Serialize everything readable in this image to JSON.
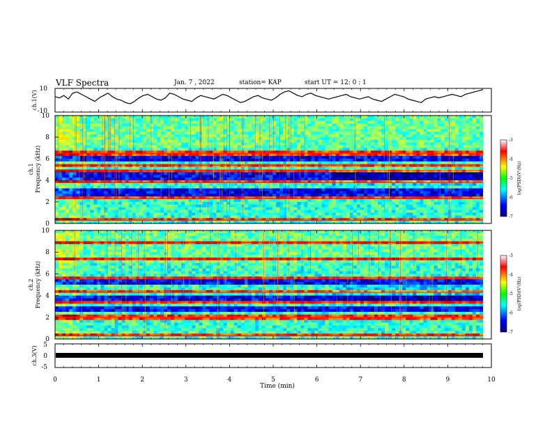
{
  "header": {
    "title": "VLF Spectra",
    "date": "Jan. 7 , 2022",
    "station": "station= KAP",
    "start_ut": "start UT = 12: 0 : 1"
  },
  "chart_data": [
    {
      "type": "line",
      "ylabel": "ch.1(V)",
      "ylim": [
        -10,
        10
      ],
      "y_ticks": [
        "10",
        "-10"
      ],
      "xlim": [
        0,
        10
      ],
      "series": [
        {
          "values": [
            3,
            2,
            4,
            1,
            6,
            7,
            5,
            3,
            1,
            -1,
            2,
            4,
            6,
            3,
            1,
            0,
            -2,
            -3,
            -1,
            2,
            4,
            5,
            3,
            1,
            0,
            2,
            6,
            5,
            3,
            1,
            0,
            -1,
            2,
            4,
            3,
            2,
            1,
            3,
            5,
            4,
            2,
            0,
            -2,
            -1,
            1,
            3,
            4,
            2,
            1,
            0,
            2,
            5,
            7,
            8,
            6,
            4,
            3,
            5,
            6,
            4,
            3,
            2,
            1,
            2,
            3,
            4,
            5,
            3,
            2,
            1,
            2,
            3,
            1,
            0,
            -1,
            1,
            3,
            5,
            4,
            3,
            1,
            0,
            -1,
            -2,
            1,
            2,
            3,
            2,
            3,
            4,
            5,
            4,
            3,
            5,
            6,
            7,
            8,
            9
          ]
        }
      ]
    },
    {
      "type": "heatmap",
      "ylabel_line1": "ch.1",
      "ylabel_line2": "Frequency (kHz)",
      "ylim": [
        0,
        10
      ],
      "y_ticks": [
        "0",
        "2",
        "4",
        "6",
        "8",
        "10"
      ],
      "xlim": [
        0,
        10
      ],
      "colorbar": {
        "label": "log(PSD)(V²/Hz)",
        "range": [
          -7,
          -3
        ],
        "ticks": [
          "-3",
          "-4",
          "-5",
          "-6",
          "-7"
        ]
      },
      "red_lines_khz": [
        0.3,
        2.3,
        3.8,
        4.9,
        5.4,
        6.5
      ],
      "blue_bands_khz": [
        [
          2.6,
          3.2
        ],
        [
          4.1,
          4.7
        ],
        [
          5.7,
          6.2
        ]
      ],
      "event_minute": 6.4
    },
    {
      "type": "heatmap",
      "ylabel_line1": "ch.2",
      "ylabel_line2": "Frequency (kHz)",
      "ylim": [
        0,
        10
      ],
      "y_ticks": [
        "0",
        "2",
        "4",
        "6",
        "8",
        "10"
      ],
      "xlim": [
        0,
        10
      ],
      "colorbar": {
        "label": "log(PSD)(V²/Hz)",
        "range": [
          -7,
          -3
        ],
        "ticks": [
          "-3",
          "-4",
          "-5",
          "-6",
          "-7"
        ]
      },
      "red_lines_khz": [
        0.3,
        2.0,
        3.4,
        4.3,
        5.6,
        7.4,
        8.9
      ],
      "blue_bands_khz": [
        [
          2.4,
          3.0
        ],
        [
          3.6,
          4.1
        ],
        [
          5.0,
          5.5
        ]
      ],
      "event_minute": 6.4
    },
    {
      "type": "line",
      "ylabel": "ch.3(V)",
      "ylim": [
        -5,
        5
      ],
      "y_ticks": [
        "5",
        "0",
        "-5"
      ],
      "xlim": [
        0,
        10
      ],
      "xlabel": "Time (min)",
      "x_ticks": [
        "0",
        "1",
        "2",
        "3",
        "4",
        "5",
        "6",
        "7",
        "8",
        "9",
        "10"
      ],
      "series": [
        {
          "values": [
            0,
            0
          ]
        }
      ]
    }
  ]
}
